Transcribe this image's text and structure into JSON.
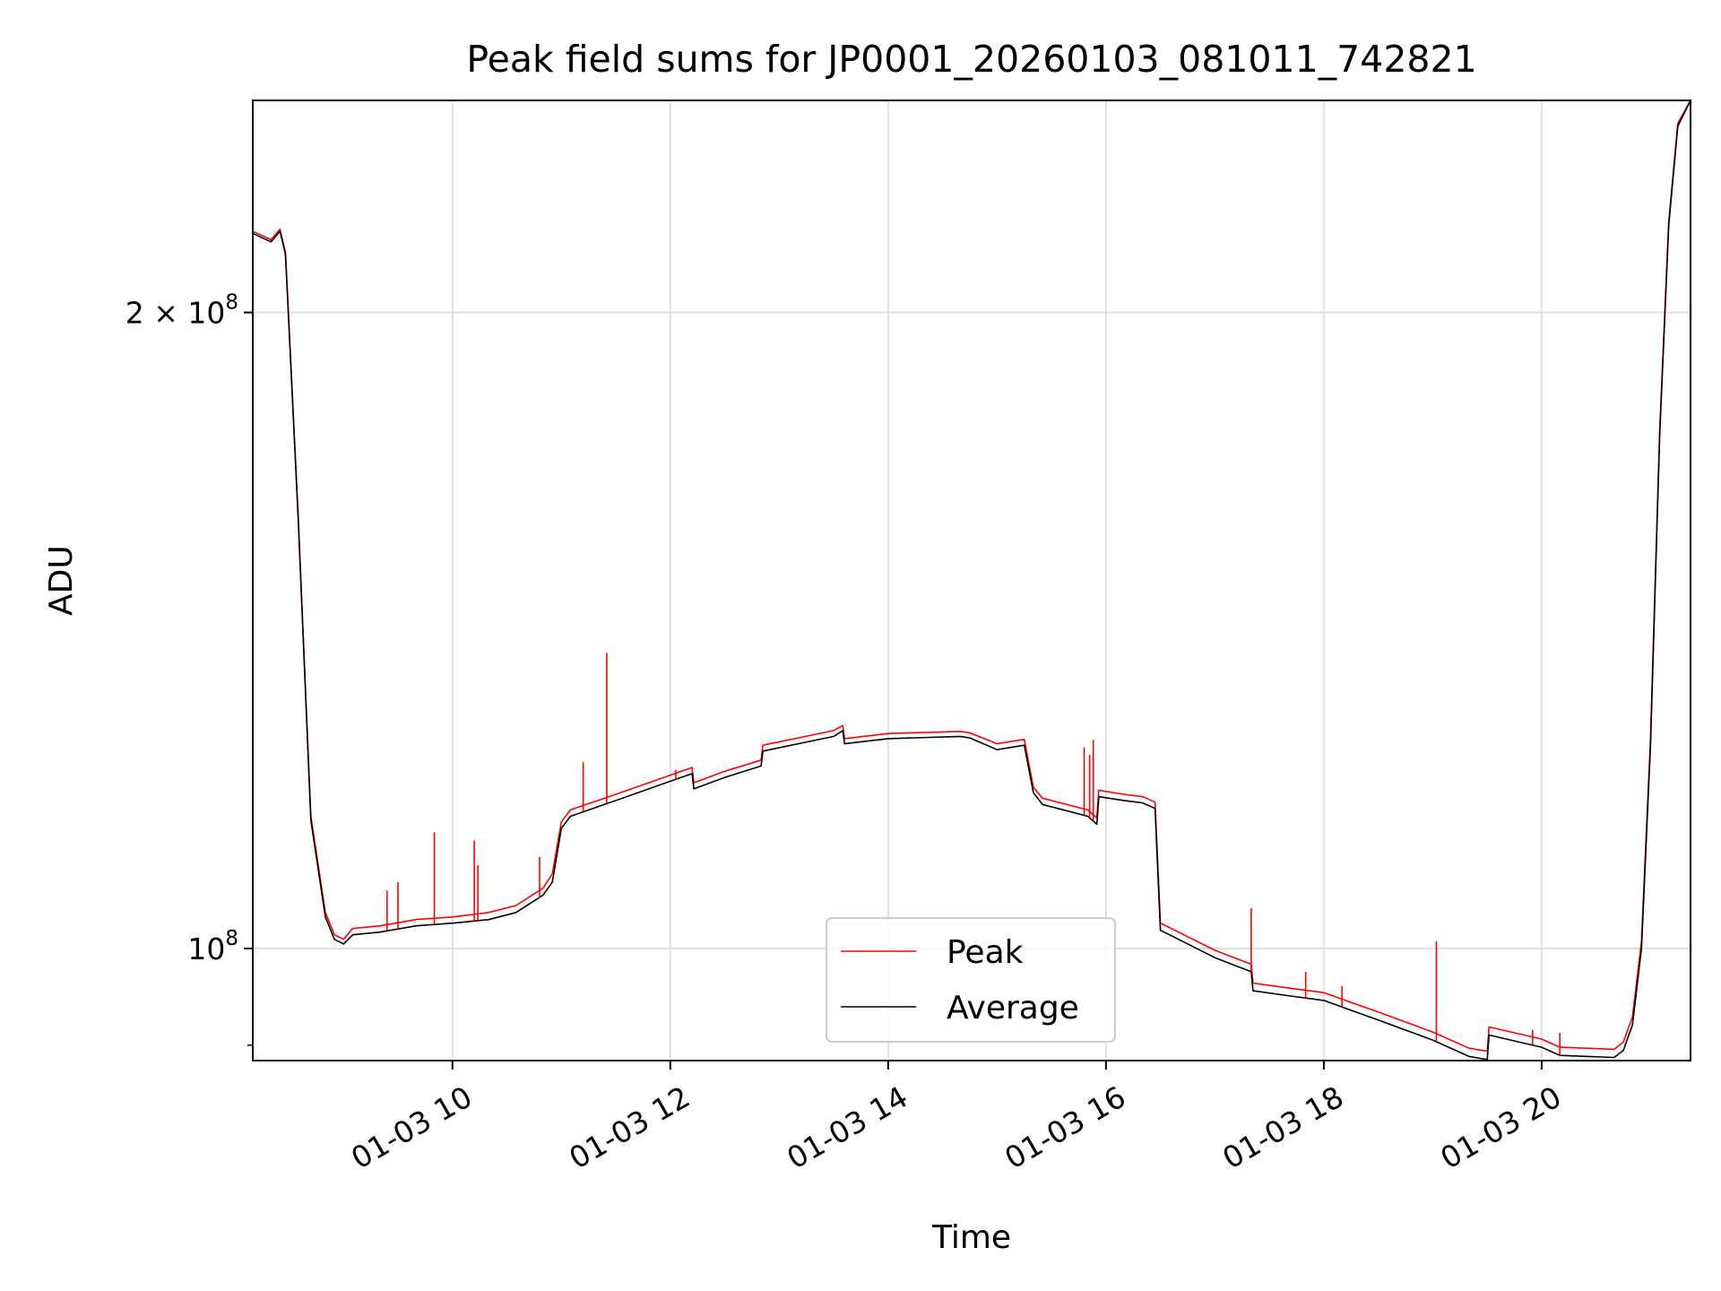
{
  "chart_data": {
    "type": "line",
    "title": "Peak field sums for JP0001_20260103_081011_742821",
    "xlabel": "Time",
    "ylabel": "ADU",
    "y_scale": "log",
    "ylim": [
      88500000,
      252000000
    ],
    "xlim": [
      "2026-01-03 08:10",
      "2026-01-03 21:22"
    ],
    "x_ticks": [
      {
        "x": "2026-01-03 10:00",
        "label": "01-03 10"
      },
      {
        "x": "2026-01-03 12:00",
        "label": "01-03 12"
      },
      {
        "x": "2026-01-03 14:00",
        "label": "01-03 14"
      },
      {
        "x": "2026-01-03 16:00",
        "label": "01-03 16"
      },
      {
        "x": "2026-01-03 18:00",
        "label": "01-03 18"
      },
      {
        "x": "2026-01-03 20:00",
        "label": "01-03 20"
      }
    ],
    "y_ticks": [
      {
        "y": 100000000,
        "base": "10",
        "exp": "8",
        "mult": ""
      },
      {
        "y": 200000000,
        "base": "10",
        "exp": "8",
        "mult": "2 × "
      }
    ],
    "grid": true,
    "legend_position": "lower center",
    "colors": {
      "Peak": "#ff0000",
      "Average": "#000000"
    },
    "series": [
      {
        "name": "Average",
        "x": [
          "2026-01-03 08:10",
          "2026-01-03 08:20",
          "2026-01-03 08:25",
          "2026-01-03 08:28",
          "2026-01-03 08:35",
          "2026-01-03 08:42",
          "2026-01-03 08:50",
          "2026-01-03 08:55",
          "2026-01-03 09:00",
          "2026-01-03 09:05",
          "2026-01-03 09:20",
          "2026-01-03 09:40",
          "2026-01-03 10:00",
          "2026-01-03 10:20",
          "2026-01-03 10:35",
          "2026-01-03 10:50",
          "2026-01-03 10:55",
          "2026-01-03 11:00",
          "2026-01-03 11:05",
          "2026-01-03 11:30",
          "2026-01-03 12:00",
          "2026-01-03 12:12",
          "2026-01-03 12:13",
          "2026-01-03 12:30",
          "2026-01-03 12:50",
          "2026-01-03 12:51",
          "2026-01-03 13:30",
          "2026-01-03 13:35",
          "2026-01-03 13:36",
          "2026-01-03 14:00",
          "2026-01-03 14:40",
          "2026-01-03 14:45",
          "2026-01-03 15:00",
          "2026-01-03 15:15",
          "2026-01-03 15:20",
          "2026-01-03 15:25",
          "2026-01-03 15:50",
          "2026-01-03 15:55",
          "2026-01-03 15:56",
          "2026-01-03 16:10",
          "2026-01-03 16:20",
          "2026-01-03 16:27",
          "2026-01-03 16:30",
          "2026-01-03 16:35",
          "2026-01-03 17:00",
          "2026-01-03 17:20",
          "2026-01-03 17:21",
          "2026-01-03 17:40",
          "2026-01-03 18:00",
          "2026-01-03 18:30",
          "2026-01-03 19:00",
          "2026-01-03 19:20",
          "2026-01-03 19:30",
          "2026-01-03 19:31",
          "2026-01-03 20:00",
          "2026-01-03 20:10",
          "2026-01-03 20:40",
          "2026-01-03 20:45",
          "2026-01-03 20:50",
          "2026-01-03 20:55",
          "2026-01-03 21:00",
          "2026-01-03 21:05",
          "2026-01-03 21:10",
          "2026-01-03 21:15",
          "2026-01-03 21:22"
        ],
        "y": [
          218000000,
          216000000,
          218500000,
          213000000,
          160000000,
          115000000,
          103500000,
          101000000,
          100500000,
          101500000,
          101800000,
          102500000,
          102800000,
          103200000,
          104000000,
          106000000,
          107500000,
          114000000,
          115500000,
          117500000,
          120000000,
          121000000,
          119000000,
          120500000,
          122000000,
          124000000,
          126000000,
          126800000,
          125000000,
          125700000,
          126000000,
          125800000,
          124200000,
          124800000,
          118500000,
          117000000,
          115500000,
          114500000,
          118000000,
          117500000,
          117200000,
          116500000,
          102000000,
          101500000,
          99000000,
          97500000,
          95500000,
          95000000,
          94500000,
          92500000,
          90500000,
          88900000,
          88600000,
          91000000,
          89800000,
          89000000,
          88800000,
          89500000,
          92000000,
          100000000,
          125000000,
          175000000,
          220000000,
          245000000,
          252000000
        ]
      },
      {
        "name": "Peak",
        "x": [
          "2026-01-03 08:10",
          "2026-01-03 08:20",
          "2026-01-03 08:25",
          "2026-01-03 08:28",
          "2026-01-03 08:35",
          "2026-01-03 08:42",
          "2026-01-03 08:50",
          "2026-01-03 08:55",
          "2026-01-03 09:00",
          "2026-01-03 09:05",
          "2026-01-03 09:20",
          "2026-01-03 09:40",
          "2026-01-03 10:00",
          "2026-01-03 10:20",
          "2026-01-03 10:35",
          "2026-01-03 10:50",
          "2026-01-03 10:55",
          "2026-01-03 11:00",
          "2026-01-03 11:05",
          "2026-01-03 11:30",
          "2026-01-03 12:00",
          "2026-01-03 12:12",
          "2026-01-03 12:13",
          "2026-01-03 12:30",
          "2026-01-03 12:50",
          "2026-01-03 12:51",
          "2026-01-03 13:30",
          "2026-01-03 13:35",
          "2026-01-03 13:36",
          "2026-01-03 14:00",
          "2026-01-03 14:40",
          "2026-01-03 14:45",
          "2026-01-03 15:00",
          "2026-01-03 15:15",
          "2026-01-03 15:20",
          "2026-01-03 15:25",
          "2026-01-03 15:50",
          "2026-01-03 15:55",
          "2026-01-03 15:56",
          "2026-01-03 16:10",
          "2026-01-03 16:20",
          "2026-01-03 16:27",
          "2026-01-03 16:30",
          "2026-01-03 16:35",
          "2026-01-03 17:00",
          "2026-01-03 17:20",
          "2026-01-03 17:21",
          "2026-01-03 17:40",
          "2026-01-03 18:00",
          "2026-01-03 18:30",
          "2026-01-03 19:00",
          "2026-01-03 19:20",
          "2026-01-03 19:30",
          "2026-01-03 19:31",
          "2026-01-03 20:00",
          "2026-01-03 20:10",
          "2026-01-03 20:40",
          "2026-01-03 20:45",
          "2026-01-03 20:50",
          "2026-01-03 20:55",
          "2026-01-03 21:00",
          "2026-01-03 21:05",
          "2026-01-03 21:10",
          "2026-01-03 21:15",
          "2026-01-03 21:22"
        ],
        "y": [
          218500000,
          216500000,
          219000000,
          213500000,
          160500000,
          115500000,
          104000000,
          101500000,
          101000000,
          102200000,
          102500000,
          103200000,
          103500000,
          104000000,
          104800000,
          106800000,
          108500000,
          114800000,
          116300000,
          118300000,
          120800000,
          121800000,
          119800000,
          121300000,
          122800000,
          124800000,
          126800000,
          127500000,
          125700000,
          126400000,
          126700000,
          126500000,
          125000000,
          125600000,
          119200000,
          117800000,
          116300000,
          115300000,
          118800000,
          118300000,
          118000000,
          117300000,
          102800000,
          102300000,
          99800000,
          98300000,
          96300000,
          95800000,
          95300000,
          93300000,
          91300000,
          89700000,
          89400000,
          91800000,
          90600000,
          89800000,
          89600000,
          90300000,
          92800000,
          100800000,
          125800000,
          175800000,
          220800000,
          245800000,
          252000000
        ]
      }
    ],
    "peak_spikes": [
      {
        "x": "2026-01-03 09:24",
        "y": 106500000
      },
      {
        "x": "2026-01-03 09:30",
        "y": 107500000
      },
      {
        "x": "2026-01-03 09:50",
        "y": 113500000
      },
      {
        "x": "2026-01-03 10:12",
        "y": 112500000
      },
      {
        "x": "2026-01-03 10:14",
        "y": 109500000
      },
      {
        "x": "2026-01-03 10:48",
        "y": 110500000
      },
      {
        "x": "2026-01-03 11:12",
        "y": 122500000
      },
      {
        "x": "2026-01-03 11:25",
        "y": 138000000
      },
      {
        "x": "2026-01-03 12:03",
        "y": 121500000
      },
      {
        "x": "2026-01-03 15:48",
        "y": 124500000
      },
      {
        "x": "2026-01-03 15:51",
        "y": 123500000
      },
      {
        "x": "2026-01-03 15:53",
        "y": 125500000
      },
      {
        "x": "2026-01-03 17:20",
        "y": 104500000
      },
      {
        "x": "2026-01-03 17:50",
        "y": 97500000
      },
      {
        "x": "2026-01-03 18:10",
        "y": 96000000
      },
      {
        "x": "2026-01-03 19:02",
        "y": 100800000
      },
      {
        "x": "2026-01-03 19:55",
        "y": 91500000
      },
      {
        "x": "2026-01-03 20:10",
        "y": 91200000
      }
    ]
  }
}
